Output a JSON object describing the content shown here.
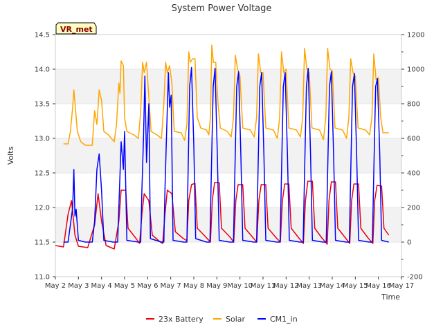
{
  "chart_data": {
    "type": "line",
    "title": "System Power Voltage",
    "ylabel": "Volts",
    "xlabel": "Time",
    "badge": "VR_met",
    "ylim": [
      11.0,
      14.5
    ],
    "y2lim": [
      -200,
      1200
    ],
    "y_ticks": [
      "11.0",
      "11.5",
      "12.0",
      "12.5",
      "13.0",
      "13.5",
      "14.0",
      "14.5"
    ],
    "y2_ticks": [
      "-200",
      "0",
      "200",
      "400",
      "600",
      "800",
      "1000",
      "1200"
    ],
    "x_ticks": [
      "May 2",
      "May 3",
      "May 4",
      "May 5",
      "May 6",
      "May 7",
      "May 8",
      "May 9",
      "May 10",
      "May 11",
      "May 12",
      "May 13",
      "May 14",
      "May 15",
      "May 16",
      "May 17"
    ],
    "series": [
      {
        "name": "23x Battery",
        "axis": "left",
        "color": "#e8000b",
        "day_offset": 0.35,
        "points": [
          [
            0.0,
            11.45
          ],
          [
            0.35,
            11.43
          ],
          [
            0.55,
            11.9
          ],
          [
            0.7,
            12.1
          ],
          [
            0.85,
            11.6
          ],
          [
            1.0,
            11.44
          ],
          [
            1.4,
            11.42
          ],
          [
            1.7,
            11.75
          ],
          [
            1.85,
            12.2
          ],
          [
            2.0,
            11.8
          ],
          [
            2.2,
            11.45
          ],
          [
            2.55,
            11.4
          ],
          [
            2.75,
            11.8
          ],
          [
            2.85,
            12.25
          ],
          [
            3.05,
            12.25
          ],
          [
            3.15,
            11.7
          ],
          [
            3.5,
            11.55
          ],
          [
            3.65,
            11.48
          ],
          [
            3.75,
            11.9
          ],
          [
            3.85,
            12.2
          ],
          [
            4.05,
            12.1
          ],
          [
            4.2,
            11.6
          ],
          [
            4.55,
            11.5
          ],
          [
            4.65,
            11.48
          ],
          [
            4.75,
            11.9
          ],
          [
            4.85,
            12.25
          ],
          [
            5.05,
            12.2
          ],
          [
            5.2,
            11.65
          ],
          [
            5.55,
            11.55
          ],
          [
            5.7,
            11.52
          ],
          [
            5.78,
            12.1
          ],
          [
            5.9,
            12.33
          ],
          [
            6.05,
            12.35
          ],
          [
            6.15,
            11.7
          ],
          [
            6.5,
            11.58
          ],
          [
            6.72,
            11.5
          ],
          [
            6.8,
            12.1
          ],
          [
            6.9,
            12.36
          ],
          [
            7.1,
            12.36
          ],
          [
            7.2,
            11.7
          ],
          [
            7.55,
            11.58
          ],
          [
            7.73,
            11.5
          ],
          [
            7.82,
            12.1
          ],
          [
            7.92,
            12.33
          ],
          [
            8.12,
            12.33
          ],
          [
            8.22,
            11.7
          ],
          [
            8.55,
            11.57
          ],
          [
            8.73,
            11.5
          ],
          [
            8.82,
            12.1
          ],
          [
            8.92,
            12.33
          ],
          [
            9.12,
            12.33
          ],
          [
            9.22,
            11.7
          ],
          [
            9.55,
            11.57
          ],
          [
            9.75,
            11.5
          ],
          [
            9.84,
            12.1
          ],
          [
            9.94,
            12.34
          ],
          [
            10.12,
            12.34
          ],
          [
            10.22,
            11.7
          ],
          [
            10.55,
            11.56
          ],
          [
            10.75,
            11.48
          ],
          [
            10.84,
            12.1
          ],
          [
            10.94,
            12.38
          ],
          [
            11.14,
            12.38
          ],
          [
            11.24,
            11.7
          ],
          [
            11.55,
            11.56
          ],
          [
            11.78,
            11.47
          ],
          [
            11.86,
            12.1
          ],
          [
            11.96,
            12.37
          ],
          [
            12.14,
            12.37
          ],
          [
            12.24,
            11.7
          ],
          [
            12.55,
            11.57
          ],
          [
            12.76,
            11.48
          ],
          [
            12.84,
            12.1
          ],
          [
            12.94,
            12.34
          ],
          [
            13.14,
            12.34
          ],
          [
            13.24,
            11.7
          ],
          [
            13.55,
            11.56
          ],
          [
            13.76,
            11.48
          ],
          [
            13.84,
            12.1
          ],
          [
            13.94,
            12.32
          ],
          [
            14.14,
            12.31
          ],
          [
            14.24,
            11.7
          ],
          [
            14.45,
            11.6
          ]
        ]
      },
      {
        "name": "Solar",
        "axis": "left",
        "color": "#ffa500",
        "points": [
          [
            0.35,
            12.92
          ],
          [
            0.55,
            12.92
          ],
          [
            0.65,
            13.1
          ],
          [
            0.75,
            13.45
          ],
          [
            0.8,
            13.7
          ],
          [
            0.88,
            13.4
          ],
          [
            0.95,
            13.1
          ],
          [
            1.1,
            12.95
          ],
          [
            1.3,
            12.9
          ],
          [
            1.6,
            12.9
          ],
          [
            1.7,
            13.4
          ],
          [
            1.8,
            13.2
          ],
          [
            1.9,
            13.7
          ],
          [
            2.0,
            13.55
          ],
          [
            2.1,
            13.1
          ],
          [
            2.3,
            13.05
          ],
          [
            2.55,
            12.95
          ],
          [
            2.65,
            13.2
          ],
          [
            2.75,
            13.8
          ],
          [
            2.8,
            13.65
          ],
          [
            2.85,
            14.12
          ],
          [
            2.95,
            14.05
          ],
          [
            3.0,
            13.3
          ],
          [
            3.1,
            13.1
          ],
          [
            3.4,
            13.05
          ],
          [
            3.6,
            13.0
          ],
          [
            3.7,
            13.4
          ],
          [
            3.78,
            14.1
          ],
          [
            3.85,
            13.95
          ],
          [
            3.95,
            14.1
          ],
          [
            4.05,
            13.6
          ],
          [
            4.15,
            13.1
          ],
          [
            4.4,
            13.05
          ],
          [
            4.6,
            13.0
          ],
          [
            4.7,
            13.5
          ],
          [
            4.78,
            14.1
          ],
          [
            4.85,
            13.95
          ],
          [
            4.95,
            14.05
          ],
          [
            5.05,
            13.8
          ],
          [
            5.15,
            13.1
          ],
          [
            5.45,
            13.08
          ],
          [
            5.6,
            12.97
          ],
          [
            5.7,
            13.2
          ],
          [
            5.78,
            14.25
          ],
          [
            5.85,
            14.1
          ],
          [
            5.95,
            14.15
          ],
          [
            6.05,
            14.15
          ],
          [
            6.15,
            13.3
          ],
          [
            6.3,
            13.15
          ],
          [
            6.55,
            13.12
          ],
          [
            6.65,
            13.05
          ],
          [
            6.72,
            13.3
          ],
          [
            6.78,
            14.35
          ],
          [
            6.85,
            14.1
          ],
          [
            6.95,
            14.1
          ],
          [
            7.0,
            13.8
          ],
          [
            7.05,
            13.5
          ],
          [
            7.15,
            13.15
          ],
          [
            7.45,
            13.1
          ],
          [
            7.62,
            13.02
          ],
          [
            7.72,
            13.3
          ],
          [
            7.8,
            14.2
          ],
          [
            7.9,
            14.0
          ],
          [
            8.0,
            13.9
          ],
          [
            8.12,
            13.15
          ],
          [
            8.45,
            13.12
          ],
          [
            8.62,
            13.02
          ],
          [
            8.72,
            13.3
          ],
          [
            8.8,
            14.22
          ],
          [
            8.9,
            13.95
          ],
          [
            9.0,
            13.95
          ],
          [
            9.12,
            13.15
          ],
          [
            9.45,
            13.12
          ],
          [
            9.62,
            13.0
          ],
          [
            9.72,
            13.3
          ],
          [
            9.8,
            14.25
          ],
          [
            9.9,
            13.95
          ],
          [
            10.0,
            14.0
          ],
          [
            10.12,
            13.15
          ],
          [
            10.45,
            13.12
          ],
          [
            10.62,
            13.02
          ],
          [
            10.72,
            13.3
          ],
          [
            10.8,
            14.3
          ],
          [
            10.9,
            14.0
          ],
          [
            11.0,
            13.95
          ],
          [
            11.12,
            13.15
          ],
          [
            11.45,
            13.12
          ],
          [
            11.62,
            12.98
          ],
          [
            11.72,
            13.3
          ],
          [
            11.8,
            14.3
          ],
          [
            11.9,
            14.0
          ],
          [
            12.0,
            13.98
          ],
          [
            12.12,
            13.15
          ],
          [
            12.45,
            13.12
          ],
          [
            12.62,
            13.0
          ],
          [
            12.72,
            13.3
          ],
          [
            12.8,
            14.15
          ],
          [
            12.9,
            13.95
          ],
          [
            13.0,
            13.9
          ],
          [
            13.12,
            13.15
          ],
          [
            13.45,
            13.12
          ],
          [
            13.62,
            13.05
          ],
          [
            13.72,
            13.3
          ],
          [
            13.8,
            14.22
          ],
          [
            13.9,
            13.85
          ],
          [
            14.0,
            13.88
          ],
          [
            14.1,
            13.3
          ],
          [
            14.2,
            13.08
          ],
          [
            14.45,
            13.08
          ]
        ]
      },
      {
        "name": "CM1_in",
        "axis": "right",
        "color": "#0000ff",
        "points": [
          [
            0.35,
            0
          ],
          [
            0.55,
            0
          ],
          [
            0.65,
            100
          ],
          [
            0.75,
            200
          ],
          [
            0.8,
            420
          ],
          [
            0.85,
            150
          ],
          [
            0.9,
            190
          ],
          [
            1.0,
            10
          ],
          [
            1.3,
            0
          ],
          [
            1.6,
            0
          ],
          [
            1.7,
            120
          ],
          [
            1.8,
            420
          ],
          [
            1.9,
            510
          ],
          [
            2.0,
            300
          ],
          [
            2.1,
            10
          ],
          [
            2.5,
            0
          ],
          [
            2.7,
            0
          ],
          [
            2.75,
            200
          ],
          [
            2.85,
            580
          ],
          [
            2.95,
            420
          ],
          [
            3.0,
            640
          ],
          [
            3.1,
            10
          ],
          [
            3.6,
            0
          ],
          [
            3.7,
            0
          ],
          [
            3.75,
            300
          ],
          [
            3.82,
            600
          ],
          [
            3.88,
            960
          ],
          [
            3.95,
            460
          ],
          [
            4.05,
            800
          ],
          [
            4.12,
            20
          ],
          [
            4.6,
            0
          ],
          [
            4.7,
            0
          ],
          [
            4.75,
            300
          ],
          [
            4.8,
            540
          ],
          [
            4.9,
            980
          ],
          [
            4.95,
            780
          ],
          [
            5.02,
            850
          ],
          [
            5.1,
            10
          ],
          [
            5.55,
            0
          ],
          [
            5.7,
            0
          ],
          [
            5.75,
            400
          ],
          [
            5.82,
            900
          ],
          [
            5.9,
            1010
          ],
          [
            6.0,
            560
          ],
          [
            6.08,
            20
          ],
          [
            6.55,
            0
          ],
          [
            6.7,
            0
          ],
          [
            6.76,
            400
          ],
          [
            6.84,
            900
          ],
          [
            6.92,
            1005
          ],
          [
            7.02,
            500
          ],
          [
            7.1,
            10
          ],
          [
            7.55,
            0
          ],
          [
            7.72,
            0
          ],
          [
            7.78,
            400
          ],
          [
            7.86,
            900
          ],
          [
            7.94,
            985
          ],
          [
            8.04,
            500
          ],
          [
            8.12,
            10
          ],
          [
            8.6,
            0
          ],
          [
            8.72,
            0
          ],
          [
            8.78,
            400
          ],
          [
            8.86,
            900
          ],
          [
            8.94,
            980
          ],
          [
            9.04,
            500
          ],
          [
            9.12,
            10
          ],
          [
            9.6,
            0
          ],
          [
            9.74,
            0
          ],
          [
            9.8,
            400
          ],
          [
            9.88,
            900
          ],
          [
            9.96,
            980
          ],
          [
            10.06,
            500
          ],
          [
            10.14,
            10
          ],
          [
            10.6,
            0
          ],
          [
            10.74,
            0
          ],
          [
            10.8,
            400
          ],
          [
            10.88,
            900
          ],
          [
            10.96,
            1005
          ],
          [
            11.06,
            500
          ],
          [
            11.14,
            10
          ],
          [
            11.6,
            0
          ],
          [
            11.74,
            0
          ],
          [
            11.8,
            400
          ],
          [
            11.88,
            900
          ],
          [
            11.96,
            985
          ],
          [
            12.06,
            500
          ],
          [
            12.14,
            10
          ],
          [
            12.6,
            0
          ],
          [
            12.74,
            0
          ],
          [
            12.8,
            400
          ],
          [
            12.88,
            900
          ],
          [
            12.96,
            975
          ],
          [
            13.06,
            500
          ],
          [
            13.14,
            10
          ],
          [
            13.6,
            0
          ],
          [
            13.74,
            0
          ],
          [
            13.8,
            400
          ],
          [
            13.88,
            900
          ],
          [
            13.96,
            945
          ],
          [
            14.06,
            500
          ],
          [
            14.14,
            10
          ],
          [
            14.45,
            0
          ]
        ]
      }
    ]
  }
}
